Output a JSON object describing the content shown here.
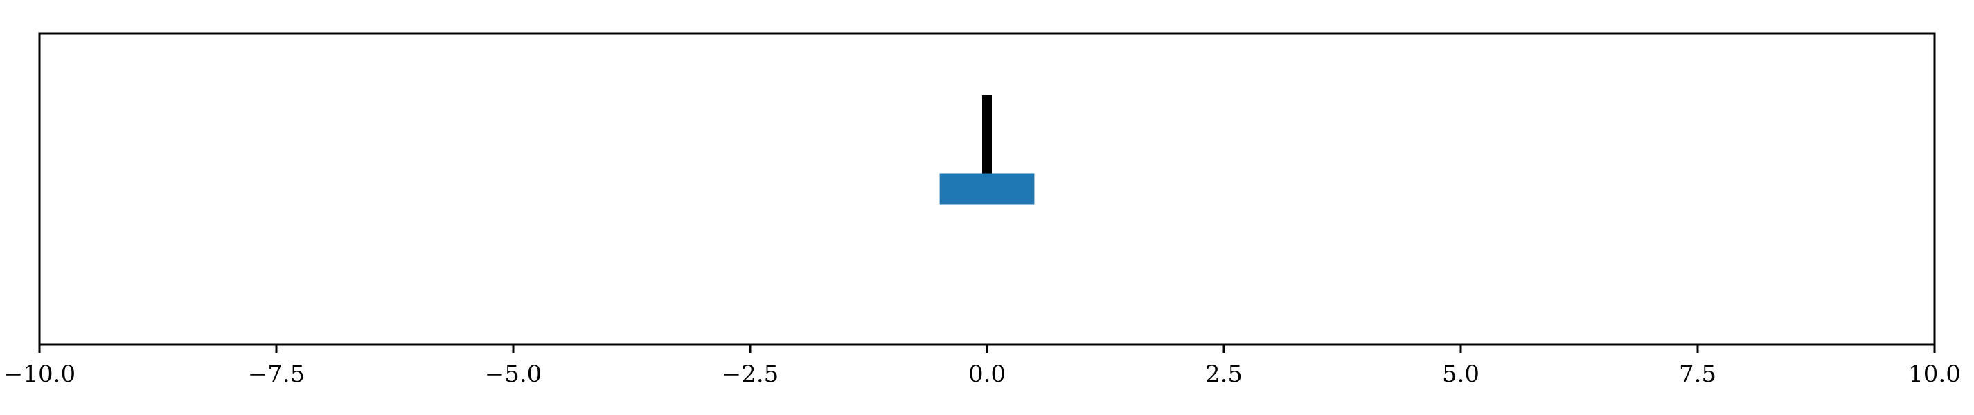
{
  "chart_data": {
    "type": "bar",
    "orientation": "horizontal",
    "title": "",
    "xlabel": "",
    "ylabel": "",
    "xlim": [
      -10.0,
      10.0
    ],
    "ylim": [
      -1,
      1
    ],
    "grid": false,
    "legend": "none",
    "x_ticks": [
      -10.0,
      -7.5,
      -5.0,
      -2.5,
      0.0,
      2.5,
      5.0,
      7.5,
      10.0
    ],
    "x_tick_labels": [
      "−10.0",
      "−7.5",
      "−5.0",
      "−2.5",
      "0.0",
      "2.5",
      "5.0",
      "7.5",
      "10.0"
    ],
    "bars": [
      {
        "y": 0,
        "left": -0.5,
        "right": 0.5,
        "height": 0.2,
        "color": "#1f77b4"
      }
    ],
    "marker_line": {
      "x": 0.0,
      "y_bottom": 0.1,
      "y_top": 0.6,
      "color": "#000000"
    },
    "colors": {
      "bar": "#1f77b4",
      "marker": "#000000",
      "axes": "#000000",
      "background": "#ffffff"
    }
  }
}
